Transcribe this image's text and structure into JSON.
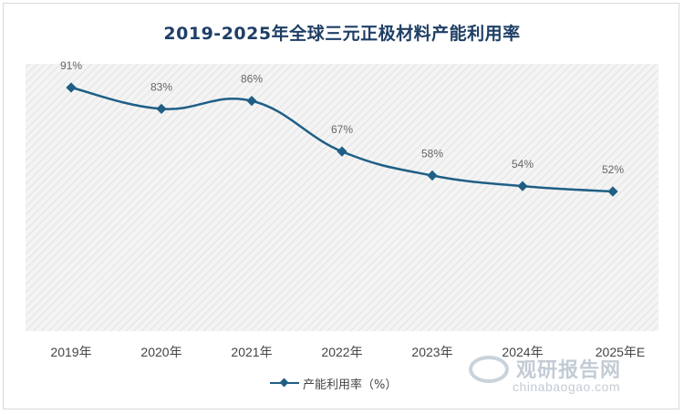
{
  "chart_data": {
    "type": "line",
    "title": "2019-2025年全球三元正极材料产能利用率",
    "categories": [
      "2019年",
      "2020年",
      "2021年",
      "2022年",
      "2023年",
      "2024年",
      "2025年E"
    ],
    "series": [
      {
        "name": "产能利用率（%）",
        "values": [
          91,
          83,
          86,
          67,
          58,
          54,
          52
        ],
        "labels": [
          "91%",
          "83%",
          "86%",
          "67%",
          "58%",
          "54%",
          "52%"
        ],
        "color": "#1f5f86"
      }
    ],
    "ylim": [
      0,
      100
    ],
    "grid": false,
    "legend": "bottom",
    "background": "hatched"
  },
  "watermark": {
    "name": "观研报告网",
    "url": "chinabaogao.com"
  }
}
